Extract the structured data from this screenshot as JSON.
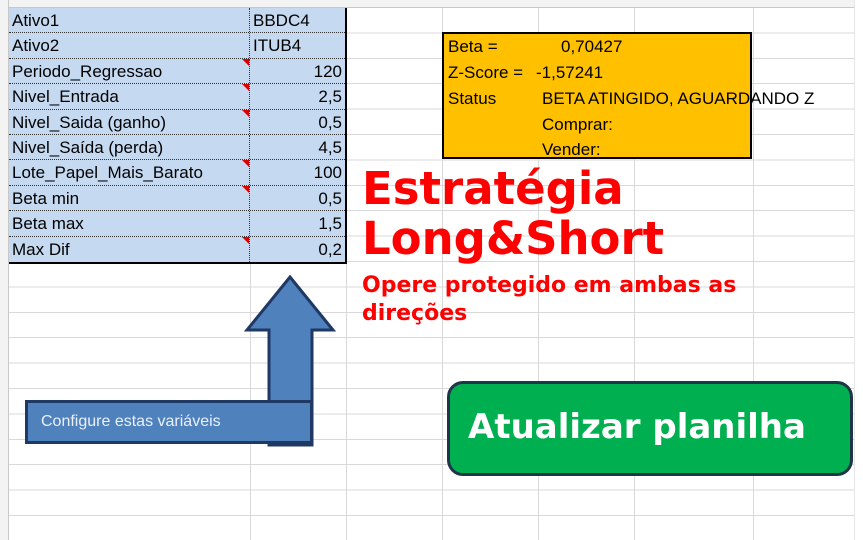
{
  "params": [
    {
      "name": "Ativo1",
      "value": "BBDC4",
      "comment": false,
      "numeric": false
    },
    {
      "name": "Ativo2",
      "value": "ITUB4",
      "comment": false,
      "numeric": false
    },
    {
      "name": "Periodo_Regressao",
      "value": "120",
      "comment": true,
      "numeric": true
    },
    {
      "name": "Nivel_Entrada",
      "value": "2,5",
      "comment": true,
      "numeric": true
    },
    {
      "name": "Nivel_Saida (ganho)",
      "value": "0,5",
      "comment": true,
      "numeric": true
    },
    {
      "name": "Nivel_Saída (perda)",
      "value": "4,5",
      "comment": false,
      "numeric": true
    },
    {
      "name": "Lote_Papel_Mais_Barato",
      "value": "100",
      "comment": true,
      "numeric": true
    },
    {
      "name": "Beta min",
      "value": "0,5",
      "comment": true,
      "numeric": true
    },
    {
      "name": "Beta max",
      "value": "1,5",
      "comment": false,
      "numeric": true
    },
    {
      "name": "Max Dif",
      "value": "0,2",
      "comment": true,
      "numeric": true
    }
  ],
  "result": {
    "beta_label": "Beta =",
    "beta_value": "0,70427",
    "zscore_label": "Z-Score =",
    "zscore_value": "-1,57241",
    "status_label": "Status",
    "status_value": "BETA ATINGIDO, AGUARDANDO Z",
    "comprar_label": "Comprar:",
    "vender_label": "Vender:"
  },
  "callout": {
    "text": "Configure estas variáveis"
  },
  "button": {
    "label": "Atualizar planilha"
  },
  "watermark": {
    "title": "Estratégia Long&Short",
    "subtitle": "Opere protegido em ambas as direções"
  },
  "colors": {
    "params_bg": "#c5d9f1",
    "result_bg": "#ffc000",
    "button_bg": "#00b050",
    "arrow": "#4f81bd",
    "watermark": "#ff0000"
  }
}
